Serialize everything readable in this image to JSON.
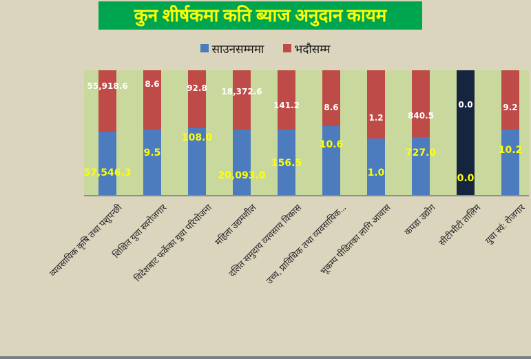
{
  "title": {
    "text": "कुन शीर्षकमा कति ब्याज अनुदान कायम",
    "bg_color": "#00A550",
    "text_color": "#FFFF00"
  },
  "legend": {
    "position": "top-center",
    "items": [
      {
        "label": "साउनसम्ममा",
        "color": "#4C7CBD"
      },
      {
        "label": "भदौसम्म",
        "color": "#BE4B48"
      }
    ]
  },
  "colors": {
    "page_background": "#DBD5BE",
    "plot_background": "#C9D99E",
    "series_blue": "#4C7CBD",
    "series_red": "#BE4B48",
    "zero_bar": "#16253F",
    "blue_label_text": "#FFFF00",
    "red_label_text": "#FFFFFF",
    "axis_line": "#8E8E87",
    "window_bottom_edge": "#77808A"
  },
  "chart_data": {
    "type": "bar",
    "subtype": "100-percent-stacked-column",
    "title": "कुन शीर्षकमा कति ब्याज अनुदान कायम",
    "xlabel": "",
    "ylabel": "",
    "gridlines": false,
    "y_axis_visible": false,
    "legend_position": "top",
    "categories": [
      "व्यवसायिक कृषि तथा पशुपन्छी",
      "शिक्षित युवा स्वरोजगार",
      "विदेशबाट फर्केका युवा परियोजना",
      "महिला उद्यमशील",
      "दलित समुदाय व्यवसाय विकास",
      "उच्च, प्राविधिक तथा व्यवसायिक...",
      "भूकम्प पीडितका लागि आवास",
      "कपडा उद्योग",
      "सीटीभीटी तालिम",
      "युवा स्वं: रोजगार"
    ],
    "series": [
      {
        "name": "साउनसम्ममा",
        "stack_order": "bottom",
        "color": "#4C7CBD",
        "values": [
          57546.3,
          9.5,
          108.0,
          20093.0,
          156.5,
          10.6,
          1.0,
          727.0,
          0.0,
          10.2
        ],
        "labels": [
          "57,546.3",
          "9.5",
          "108.0",
          "20,093.0",
          "156.5",
          "10.6",
          "1.0",
          "727.0",
          "0.0",
          "10.2"
        ],
        "label_color": "#FFFF00",
        "label_top_pct": [
          82.2,
          66.1,
          54.1,
          84.5,
          74.4,
          59.7,
          82.3,
          66.5,
          86.7,
          63.9
        ]
      },
      {
        "name": "भदौसम्म",
        "stack_order": "top",
        "color": "#BE4B48",
        "values": [
          55918.6,
          8.6,
          92.8,
          18372.6,
          141.2,
          8.6,
          1.2,
          840.5,
          0.0,
          9.2
        ],
        "labels": [
          "55,918.6",
          "8.6",
          "92.8",
          "18,372.6",
          "141.2",
          "8.6",
          "1.2",
          "840.5",
          "0.0",
          "9.2"
        ],
        "label_color": "#FFFFFF",
        "label_top_pct": [
          12.7,
          10.9,
          14.5,
          17.1,
          28.3,
          29.7,
          38.1,
          36.3,
          27.8,
          29.8
        ]
      }
    ],
    "zero_total_bar": {
      "category_index": 8,
      "rendered_as": "full-height dark navy bar",
      "color": "#16253F"
    }
  }
}
